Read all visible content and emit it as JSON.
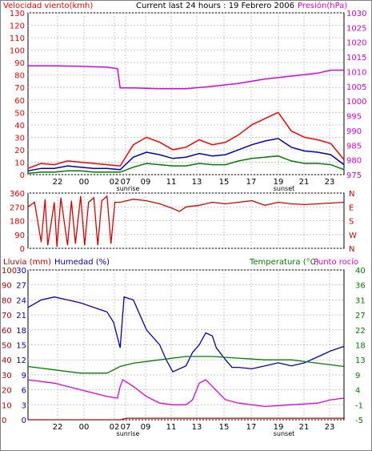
{
  "header": {
    "left_title": "Velocidad viento(kmh)",
    "center_title": "Current last 24 hours : 19 Febrero 2006",
    "right_title": "Presión(hPa)"
  },
  "lower_header": {
    "rain": "Lluvia (mm)",
    "humidity": "Humedad (%)",
    "temperature": "Temperatura (°C)",
    "dewpoint": "Punto rocío"
  },
  "time_labels": [
    "22",
    "00",
    "02",
    "07",
    "09",
    "11",
    "13",
    "15",
    "17",
    "19",
    "21",
    "23"
  ],
  "sun_labels": {
    "sunrise": "sunrise",
    "sunset": "sunset"
  },
  "colors": {
    "wind": "#ff0000",
    "wind_avg": "#0000c0",
    "wind_min": "#007f00",
    "pressure": "#e000e0",
    "direction": "#e00000",
    "rain": "#c00000",
    "humidity": "#0000c0",
    "temperature": "#007f00",
    "dewpoint": "#e000e0"
  },
  "chart_data": [
    {
      "type": "line",
      "name": "wind-pressure",
      "xlabel": "",
      "y_left": {
        "label": "Velocidad viento(kmh)",
        "ticks": [
          0,
          10,
          20,
          30,
          40,
          50,
          60,
          70,
          80,
          90,
          100,
          110,
          120,
          130
        ],
        "ylim": [
          0,
          130
        ]
      },
      "y_right": {
        "label": "Presión(hPa)",
        "ticks": [
          975,
          980,
          985,
          990,
          995,
          1000,
          1005,
          1010,
          1015,
          1020,
          1025,
          1030
        ],
        "ylim": [
          975,
          1030
        ]
      },
      "series": [
        {
          "name": "Racha",
          "axis": "left",
          "color_key": "wind",
          "x": [
            0,
            1,
            2,
            3,
            4,
            5,
            6,
            7,
            8,
            9,
            10,
            11,
            12,
            13,
            14,
            15,
            16,
            17,
            18,
            19,
            20,
            21,
            22,
            23,
            24
          ],
          "values": [
            5,
            9,
            8,
            11,
            10,
            9,
            8,
            7,
            24,
            30,
            26,
            20,
            22,
            28,
            24,
            26,
            32,
            40,
            45,
            50,
            35,
            30,
            28,
            25,
            12
          ]
        },
        {
          "name": "Viento medio",
          "axis": "left",
          "color_key": "wind_avg",
          "x": [
            0,
            1,
            2,
            3,
            4,
            5,
            6,
            7,
            8,
            9,
            10,
            11,
            12,
            13,
            14,
            15,
            16,
            17,
            18,
            19,
            20,
            21,
            22,
            23,
            24
          ],
          "values": [
            3,
            5,
            5,
            7,
            6,
            5,
            5,
            4,
            14,
            18,
            16,
            13,
            14,
            17,
            15,
            16,
            20,
            24,
            27,
            29,
            22,
            19,
            18,
            16,
            8
          ]
        },
        {
          "name": "Viento minimo",
          "axis": "left",
          "color_key": "wind_min",
          "x": [
            0,
            1,
            2,
            3,
            4,
            5,
            6,
            7,
            8,
            9,
            10,
            11,
            12,
            13,
            14,
            15,
            16,
            17,
            18,
            19,
            20,
            21,
            22,
            23,
            24
          ],
          "values": [
            1,
            2,
            2,
            3,
            3,
            2,
            2,
            2,
            6,
            9,
            8,
            7,
            7,
            9,
            8,
            8,
            11,
            13,
            14,
            15,
            11,
            9,
            9,
            8,
            4
          ]
        },
        {
          "name": "Presion",
          "axis": "right",
          "color_key": "pressure",
          "x": [
            0,
            2,
            4,
            6,
            6.8,
            7,
            8,
            10,
            12,
            14,
            16,
            18,
            20,
            22,
            23,
            24
          ],
          "values": [
            1012,
            1012,
            1011.8,
            1011.5,
            1011,
            1004.5,
            1004.5,
            1004.2,
            1004.2,
            1005,
            1006,
            1007.5,
            1008.5,
            1009.5,
            1010.5,
            1010.5
          ]
        }
      ]
    },
    {
      "type": "line",
      "name": "wind-direction",
      "y_left": {
        "ticks": [
          0,
          90,
          180,
          270,
          360
        ],
        "ylim": [
          0,
          360
        ]
      },
      "y_right": {
        "ticks": [
          "N",
          "W",
          "S",
          "E",
          "N"
        ]
      },
      "series": [
        {
          "name": "Direccion",
          "color_key": "direction",
          "x": [
            0,
            0.5,
            1,
            1.3,
            1.5,
            2,
            2.2,
            2.5,
            3,
            3.3,
            3.6,
            4,
            4.3,
            4.6,
            5,
            5.3,
            5.6,
            6,
            6.3,
            6.6,
            7,
            8,
            9,
            10,
            11,
            11.5,
            12,
            13,
            14,
            15,
            16,
            17,
            18,
            19,
            20,
            21,
            22,
            23,
            24
          ],
          "values": [
            270,
            300,
            40,
            320,
            20,
            300,
            10,
            330,
            20,
            310,
            30,
            340,
            20,
            300,
            330,
            20,
            310,
            340,
            30,
            300,
            300,
            320,
            310,
            290,
            260,
            240,
            270,
            280,
            300,
            290,
            300,
            310,
            280,
            300,
            290,
            285,
            290,
            295,
            300
          ]
        }
      ]
    },
    {
      "type": "line",
      "name": "rain-humidity-temperature",
      "y_left": {
        "ticks": [
          0,
          10,
          20,
          30,
          40,
          50,
          60,
          70,
          80,
          90,
          100
        ],
        "ylim": [
          0,
          100
        ],
        "ticks2": [
          0,
          3,
          6,
          9,
          12,
          15,
          18,
          21,
          24,
          27,
          30
        ],
        "ylim2": [
          0,
          30
        ]
      },
      "y_right": {
        "ticks": [
          -5,
          -1,
          4,
          9,
          13,
          18,
          22,
          27,
          31,
          36,
          40
        ],
        "ylim": [
          -5,
          40
        ]
      },
      "series": [
        {
          "name": "Lluvia",
          "axis": "left2",
          "color_key": "rain",
          "x": [
            0,
            7,
            7.5,
            24
          ],
          "values": [
            0,
            0,
            0.3,
            0.3
          ]
        },
        {
          "name": "Humedad",
          "axis": "left",
          "color_key": "humidity",
          "x": [
            0,
            1,
            2,
            3,
            4,
            5,
            6,
            6.5,
            7,
            7.3,
            8,
            8.5,
            9,
            10,
            10.5,
            11,
            12,
            12.5,
            13,
            13.5,
            14,
            14.3,
            15,
            15.5,
            16,
            17,
            18,
            19,
            20,
            21,
            22,
            23,
            24
          ],
          "values": [
            75,
            80,
            82,
            80,
            78,
            75,
            72,
            65,
            48,
            82,
            80,
            70,
            60,
            50,
            40,
            32,
            36,
            45,
            50,
            58,
            56,
            48,
            40,
            35,
            35,
            34,
            36,
            38,
            36,
            38,
            42,
            46,
            49
          ]
        },
        {
          "name": "Temperatura",
          "axis": "right",
          "color_key": "temperature",
          "x": [
            0,
            2,
            4,
            6,
            7,
            8,
            10,
            12,
            14,
            16,
            18,
            20,
            22,
            24
          ],
          "values": [
            11,
            10,
            9,
            9,
            11,
            12,
            13,
            14,
            14,
            13.5,
            13,
            13,
            12,
            11
          ]
        },
        {
          "name": "Punto rocio",
          "axis": "right",
          "color_key": "dewpoint",
          "x": [
            0,
            2,
            4,
            6,
            6.8,
            7,
            7.2,
            8,
            9,
            10,
            11,
            12,
            12.5,
            13,
            13.5,
            14,
            15,
            16,
            18,
            20,
            22,
            23,
            24
          ],
          "values": [
            7,
            6,
            4,
            2,
            1.5,
            5,
            7,
            5,
            2,
            0,
            -0.5,
            -0.5,
            1,
            6,
            7,
            5,
            1,
            0,
            -1,
            -0.5,
            0,
            1,
            1.5
          ]
        }
      ]
    }
  ]
}
